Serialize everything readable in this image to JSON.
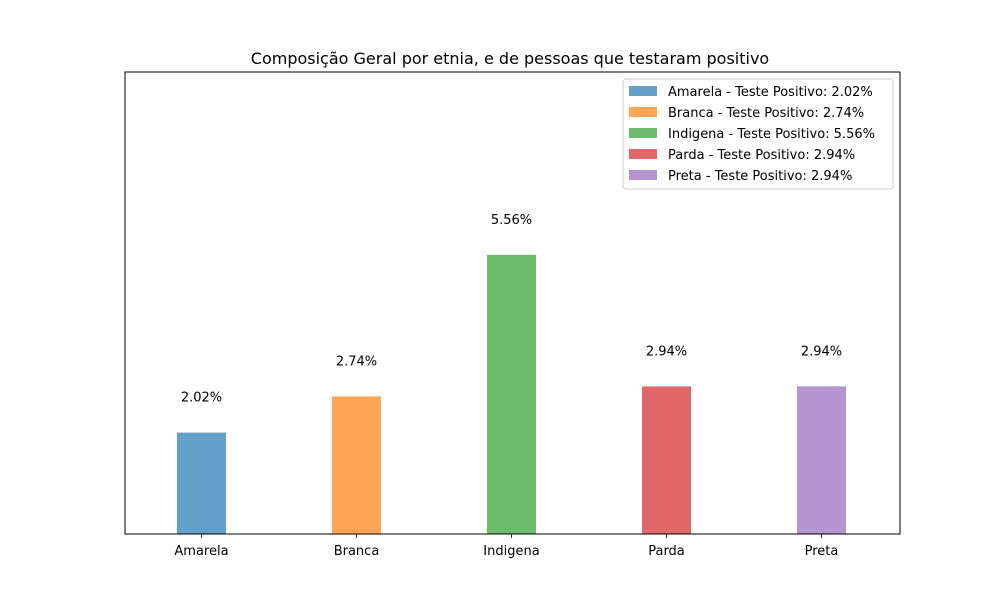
{
  "chart_data": {
    "type": "bar",
    "title": "Composição Geral por etnia, e de pessoas que testaram positivo",
    "xlabel": "",
    "ylabel": "",
    "categories": [
      "Amarela",
      "Branca",
      "Indigena",
      "Parda",
      "Preta"
    ],
    "values": [
      2.02,
      2.74,
      5.56,
      2.94,
      2.94
    ],
    "value_labels": [
      "2.02%",
      "2.74%",
      "5.56%",
      "2.94%",
      "2.94%"
    ],
    "colors": [
      "#1f77b4",
      "#ff7f0e",
      "#2ca02c",
      "#d62728",
      "#9467bd"
    ],
    "bar_opacity": 0.7,
    "ylim": [
      0,
      9.2
    ],
    "y_ticks_visible": false,
    "grid": false,
    "legend_position": "top-right",
    "legend": [
      "Amarela - Teste Positivo: 2.02%",
      "Branca - Teste Positivo: 2.74%",
      "Indigena - Teste Positivo: 5.56%",
      "Parda - Teste Positivo: 2.94%",
      "Preta - Teste Positivo: 2.94%"
    ]
  }
}
